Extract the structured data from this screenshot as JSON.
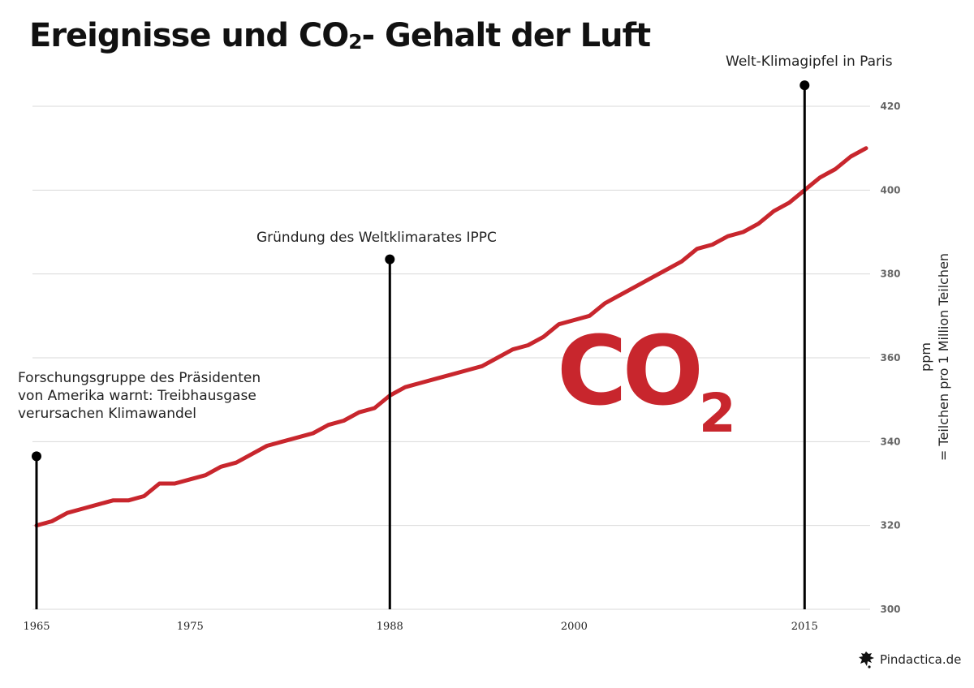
{
  "title": {
    "text": "Ereignisse und CO",
    "sub": "2",
    "tail": "- Gehalt der Luft"
  },
  "co2_label": {
    "text": "CO",
    "sub": "2"
  },
  "ylabel": {
    "unit": "ppm",
    "explain": "= Teilchen pro 1 Million Teilchen"
  },
  "brand": {
    "text": "Pindactica.de",
    "icon": "pindactica-logo-icon"
  },
  "colors": {
    "line": "#c8262d",
    "grid": "#d9d9d9",
    "event": "#000000"
  },
  "chart_data": {
    "type": "line",
    "title": "Ereignisse und CO2- Gehalt der Luft",
    "xlabel": "",
    "ylabel": "ppm = Teilchen pro 1 Million Teilchen",
    "xlim": [
      1965,
      2019
    ],
    "ylim": [
      300,
      424
    ],
    "x_ticks": [
      1965,
      1975,
      1988,
      2000,
      2015
    ],
    "y_ticks": [
      300,
      320,
      340,
      360,
      380,
      400,
      420
    ],
    "y_axis_position": "right",
    "grid": "horizontal",
    "series": [
      {
        "x": [
          1965,
          1966,
          1967,
          1968,
          1969,
          1970,
          1971,
          1972,
          1973,
          1974,
          1975,
          1976,
          1977,
          1978,
          1979,
          1980,
          1981,
          1982,
          1983,
          1984,
          1985,
          1986,
          1987,
          1988,
          1989,
          1990,
          1991,
          1992,
          1993,
          1994,
          1995,
          1996,
          1997,
          1998,
          1999,
          2000,
          2001,
          2002,
          2003,
          2004,
          2005,
          2006,
          2007,
          2008,
          2009,
          2010,
          2011,
          2012,
          2013,
          2014,
          2015,
          2016,
          2017,
          2018,
          2019
        ],
        "y": [
          320,
          321,
          323,
          324,
          325,
          326,
          326,
          327,
          330,
          330,
          331,
          332,
          334,
          335,
          337,
          339,
          340,
          341,
          342,
          344,
          345,
          347,
          348,
          351,
          353,
          354,
          355,
          356,
          357,
          358,
          360,
          362,
          363,
          365,
          368,
          369,
          370,
          373,
          375,
          377,
          379,
          381,
          383,
          386,
          387,
          389,
          390,
          392,
          395,
          397,
          400,
          403,
          405,
          408,
          410
        ]
      }
    ],
    "events": [
      {
        "year": 1965,
        "marker_ppm": 336.5,
        "label": "Forschungsgruppe des Präsidenten\nvon Amerika warnt: Treibhausgase\nverursachen Klimawandel"
      },
      {
        "year": 1988,
        "marker_ppm": 383.5,
        "label": "Gründung des Weltklimarates IPPC"
      },
      {
        "year": 2015,
        "marker_ppm": 425,
        "label": "Welt-Klimagipfel in Paris"
      }
    ]
  }
}
